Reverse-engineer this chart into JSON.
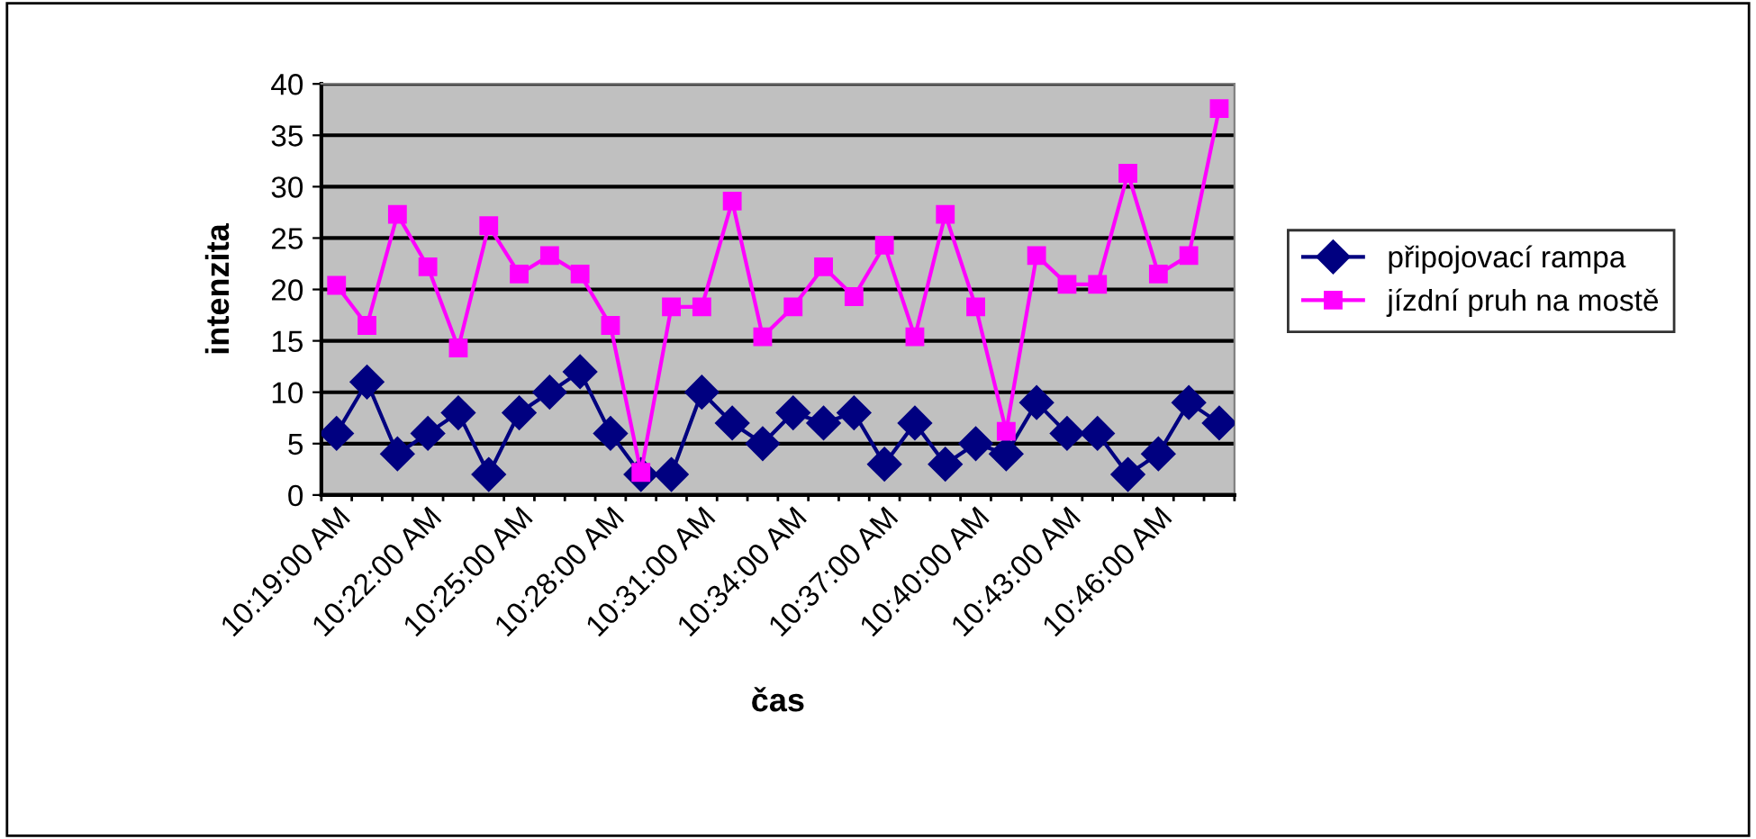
{
  "chart_data": {
    "type": "line",
    "xlabel": "čas",
    "ylabel": "intenzita",
    "categories": [
      "10:19:00 AM",
      null,
      null,
      "10:22:00 AM",
      null,
      null,
      "10:25:00 AM",
      null,
      null,
      "10:28:00 AM",
      null,
      null,
      "10:31:00 AM",
      null,
      null,
      "10:34:00 AM",
      null,
      null,
      "10:37:00 AM",
      null,
      null,
      "10:40:00 AM",
      null,
      null,
      "10:43:00 AM",
      null,
      null,
      "10:46:00 AM",
      null,
      null
    ],
    "series": [
      {
        "name": "připojovací rampa",
        "color": "#000080",
        "marker": "diamond",
        "values": [
          6,
          11,
          4,
          6,
          8,
          2,
          8,
          10,
          12,
          6,
          2,
          2,
          10,
          7,
          5,
          8,
          7,
          8,
          3,
          7,
          3,
          5,
          4,
          9,
          6,
          6,
          2,
          4,
          9,
          7
        ]
      },
      {
        "name": "jízdní pruh na mostě",
        "color": "#ff00ff",
        "marker": "square",
        "values": [
          20.4,
          16.5,
          27.3,
          22.2,
          14.3,
          26.2,
          21.5,
          23.3,
          21.5,
          16.5,
          2.2,
          18.3,
          18.3,
          28.6,
          15.4,
          18.3,
          22.2,
          19.3,
          24.3,
          15.4,
          27.3,
          18.3,
          6.2,
          23.3,
          20.5,
          20.5,
          31.3,
          21.5,
          23.3,
          37.6
        ]
      }
    ],
    "ylim": [
      0,
      40
    ],
    "yticks": [
      0,
      5,
      10,
      15,
      20,
      25,
      30,
      35,
      40
    ],
    "grid": "y",
    "legend": "right"
  }
}
